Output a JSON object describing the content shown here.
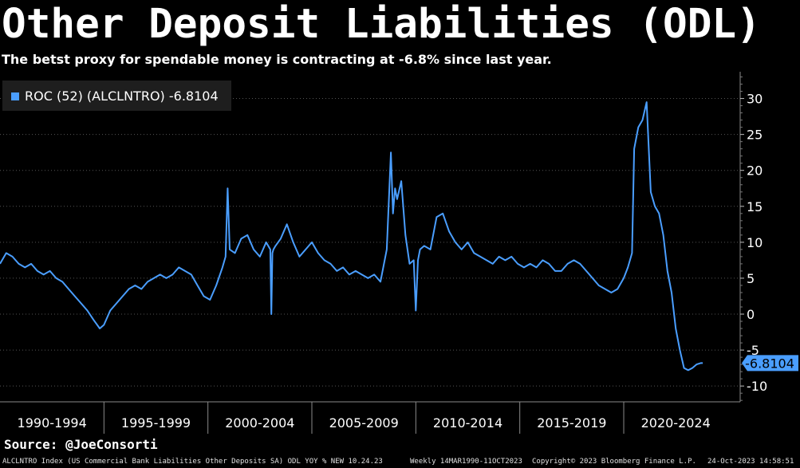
{
  "header": {
    "title": "Other Deposit Liabilities (ODL)",
    "subtitle": "The betst proxy for spendable money is contracting at -6.8% since last year."
  },
  "source": "Source: @JoeConsorti",
  "footer": {
    "description": "ALCLNTRO Index (US Commercial Bank Liabilities Other Deposits SA) ODL YOY % NEW 10.24.23",
    "range": "Weekly 14MAR1990-11OCT2023",
    "copyright": "Copyright© 2023 Bloomberg Finance L.P.",
    "timestamp": "24-Oct-2023 14:58:51"
  },
  "colors": {
    "background": "#000000",
    "line": "#4a9eff",
    "grid": "#555555",
    "legend_bg": "#1e1e1e",
    "callout": "#4a9eff"
  },
  "chart_data": {
    "type": "line",
    "title": "Other Deposit Liabilities (ODL)",
    "legend": "ROC (52) (ALCLNTRO) -6.8104",
    "legend_position": "top-left",
    "last_value_label": "-6.8104",
    "y_axis_position": "right",
    "xlim": [
      1990.0,
      2025.6
    ],
    "ylim": [
      -12.2,
      33.5
    ],
    "y_ticks": [
      -10,
      -5,
      0,
      5,
      10,
      15,
      20,
      25,
      30
    ],
    "y_tick_labels": [
      "-10",
      "-5",
      "0",
      "5",
      "10",
      "15",
      "20",
      "25",
      "30"
    ],
    "x_period_labels": [
      "1990-1994",
      "1995-1999",
      "2000-2004",
      "2005-2009",
      "2010-2014",
      "2015-2019",
      "2020-2024"
    ],
    "x_period_boundaries": [
      1995,
      2000,
      2005,
      2010,
      2015,
      2020
    ],
    "grid": true,
    "series": [
      {
        "name": "ROC (52) (ALCLNTRO)",
        "x": [
          1990.0,
          1990.3,
          1990.6,
          1990.9,
          1991.2,
          1991.5,
          1991.8,
          1992.1,
          1992.4,
          1992.7,
          1993.0,
          1993.3,
          1993.6,
          1993.9,
          1994.2,
          1994.5,
          1994.8,
          1995.0,
          1995.3,
          1995.6,
          1995.9,
          1996.2,
          1996.5,
          1996.8,
          1997.1,
          1997.4,
          1997.7,
          1998.0,
          1998.3,
          1998.6,
          1998.9,
          1999.2,
          1999.5,
          1999.8,
          2000.1,
          2000.4,
          2000.7,
          2000.85,
          2000.95,
          2001.05,
          2001.3,
          2001.6,
          2001.9,
          2002.2,
          2002.5,
          2002.8,
          2003.0,
          2003.05,
          2003.1,
          2003.15,
          2003.25,
          2003.5,
          2003.8,
          2004.1,
          2004.4,
          2004.7,
          2005.0,
          2005.3,
          2005.6,
          2005.9,
          2006.2,
          2006.5,
          2006.8,
          2007.1,
          2007.4,
          2007.7,
          2008.0,
          2008.3,
          2008.6,
          2008.8,
          2008.9,
          2009.0,
          2009.1,
          2009.3,
          2009.5,
          2009.7,
          2009.9,
          2010.0,
          2010.1,
          2010.2,
          2010.4,
          2010.7,
          2011.0,
          2011.3,
          2011.6,
          2011.9,
          2012.2,
          2012.5,
          2012.8,
          2013.1,
          2013.4,
          2013.7,
          2014.0,
          2014.3,
          2014.6,
          2014.9,
          2015.2,
          2015.5,
          2015.8,
          2016.1,
          2016.4,
          2016.7,
          2017.0,
          2017.3,
          2017.6,
          2017.9,
          2018.2,
          2018.5,
          2018.8,
          2019.1,
          2019.4,
          2019.7,
          2020.0,
          2020.2,
          2020.3,
          2020.4,
          2020.5,
          2020.7,
          2020.9,
          2021.1,
          2021.3,
          2021.5,
          2021.7,
          2021.9,
          2022.1,
          2022.3,
          2022.5,
          2022.7,
          2022.9,
          2023.1,
          2023.3,
          2023.5,
          2023.7,
          2023.8
        ],
        "values": [
          7.0,
          8.5,
          8.0,
          7.0,
          6.5,
          7.0,
          6.0,
          5.5,
          6.0,
          5.0,
          4.5,
          3.5,
          2.5,
          1.5,
          0.5,
          -0.8,
          -2.0,
          -1.5,
          0.5,
          1.5,
          2.5,
          3.5,
          4.0,
          3.5,
          4.5,
          5.0,
          5.5,
          5.0,
          5.5,
          6.5,
          6.0,
          5.5,
          4.0,
          2.5,
          2.0,
          4.0,
          6.5,
          8.0,
          17.5,
          9.0,
          8.5,
          10.5,
          11.0,
          9.0,
          8.0,
          10.0,
          9.0,
          0.0,
          8.5,
          9.0,
          9.5,
          10.5,
          12.5,
          10.0,
          8.0,
          9.0,
          10.0,
          8.5,
          7.5,
          7.0,
          6.0,
          6.5,
          5.5,
          6.0,
          5.5,
          5.0,
          5.5,
          4.5,
          9.0,
          22.5,
          14.0,
          17.5,
          16.0,
          18.5,
          11.0,
          7.0,
          7.5,
          0.5,
          7.5,
          9.0,
          9.5,
          9.0,
          13.5,
          14.0,
          11.5,
          10.0,
          9.0,
          10.0,
          8.5,
          8.0,
          7.5,
          7.0,
          8.0,
          7.5,
          8.0,
          7.0,
          6.5,
          7.0,
          6.5,
          7.5,
          7.0,
          6.0,
          6.0,
          7.0,
          7.5,
          7.0,
          6.0,
          5.0,
          4.0,
          3.5,
          3.0,
          3.5,
          5.0,
          6.5,
          7.5,
          8.5,
          23.0,
          26.0,
          27.0,
          29.5,
          17.0,
          15.0,
          14.0,
          11.0,
          6.0,
          3.0,
          -2.0,
          -5.0,
          -7.5,
          -7.8,
          -7.5,
          -7.0,
          -6.8104,
          -6.8104
        ]
      }
    ]
  }
}
